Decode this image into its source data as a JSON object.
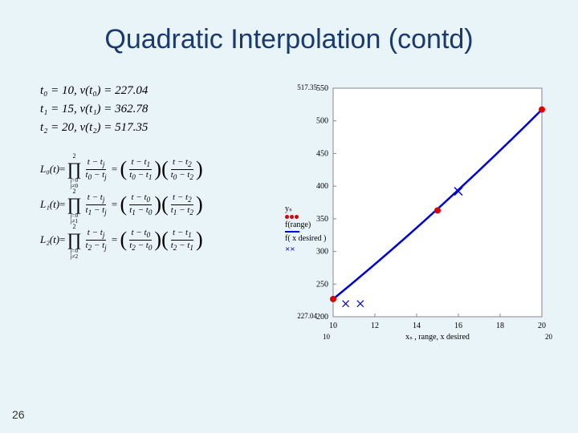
{
  "title": "Quadratic Interpolation (contd)",
  "pageNumber": "26",
  "dataPoints": {
    "t0": "t₀ = 10,  v(t₀) = 227.04",
    "t1": "t₁ = 15,  v(t₁) = 362.78",
    "t2": "t₂ = 20,  v(t₂) = 517.35"
  },
  "lagrange": {
    "L0_label": "L₀(t)",
    "L1_label": "L₁(t)",
    "L2_label": "L₂(t)",
    "j0": "j=0\nj≠0",
    "j1": "j=0\nj≠1",
    "j2": "j=0\nj≠2"
  },
  "legend": {
    "ys": "yₛ",
    "frange": "f(range)",
    "fxd": "f( x desired )"
  },
  "chart": {
    "type": "line",
    "xlim": [
      10,
      20
    ],
    "ylim": [
      200,
      550
    ],
    "xticks": [
      10,
      12,
      14,
      16,
      18,
      20
    ],
    "yticks": [
      200,
      250,
      300,
      350,
      400,
      450,
      500,
      550
    ],
    "xlabel": "xₛ , range, x desired",
    "corner_tl": "517.35",
    "corner_bl": "227.04",
    "corner_blx": "10",
    "corner_brx": "20",
    "line_color": "#0000dd",
    "point_color": "#dd0000",
    "cross_color": "#0000dd",
    "grid_color": "#888888",
    "bg_color": "#ffffff",
    "line_width": 2.5,
    "marker_size": 4,
    "series_x": [
      10,
      15,
      20
    ],
    "series_y": [
      227.04,
      362.78,
      517.35
    ],
    "desired_x": 16,
    "desired_y": 392.0,
    "crosses": [
      [
        10.6,
        220
      ],
      [
        11.3,
        220
      ]
    ]
  }
}
